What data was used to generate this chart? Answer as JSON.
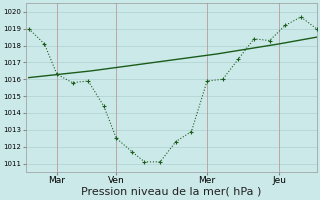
{
  "title": "",
  "xlabel": "Pression niveau de la mer( hPa )",
  "ylabel": "",
  "bg_color": "#cce9e9",
  "grid_color": "#b0d0d0",
  "line_color": "#1a5c1a",
  "ylim": [
    1010.5,
    1020.5
  ],
  "xlim": [
    -0.1,
    9.2
  ],
  "yticks": [
    1011,
    1012,
    1013,
    1014,
    1015,
    1016,
    1017,
    1018,
    1019,
    1020
  ],
  "xtick_positions": [
    0.9,
    2.8,
    5.7,
    8.0
  ],
  "xtick_labels": [
    "Mar",
    "Ven",
    "Mer",
    "Jeu"
  ],
  "series1_x": [
    0.0,
    0.5,
    0.9,
    1.4,
    1.9,
    2.4,
    2.8,
    3.3,
    3.7,
    4.2,
    4.7,
    5.2,
    5.7,
    6.2,
    6.7,
    7.2,
    7.7,
    8.2,
    8.7,
    9.2
  ],
  "series1_y": [
    1019.0,
    1018.1,
    1016.3,
    1015.8,
    1015.9,
    1014.4,
    1012.5,
    1011.7,
    1011.1,
    1011.1,
    1012.3,
    1012.9,
    1015.9,
    1016.0,
    1017.2,
    1018.4,
    1018.3,
    1019.2,
    1019.7,
    1019.0
  ],
  "series2_x": [
    0.0,
    2.0,
    4.0,
    6.0,
    7.0,
    8.0,
    9.2
  ],
  "series2_y": [
    1016.1,
    1016.5,
    1017.0,
    1017.5,
    1017.8,
    1018.1,
    1018.5
  ],
  "vline_positions": [
    0.9,
    2.8,
    5.7,
    8.0
  ],
  "xlabel_fontsize": 8,
  "ytick_fontsize": 5,
  "xtick_fontsize": 6.5
}
